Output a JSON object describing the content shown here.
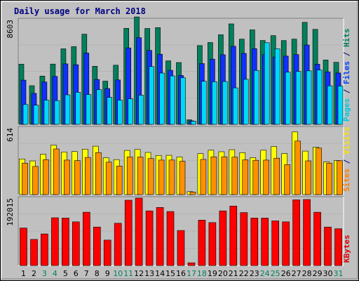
{
  "chart_data": {
    "type": "bar",
    "title": "Daily usage for March 2018",
    "categories": [
      "1",
      "2",
      "3",
      "4",
      "5",
      "6",
      "7",
      "8",
      "9",
      "10",
      "11",
      "12",
      "13",
      "14",
      "15",
      "16",
      "17",
      "18",
      "19",
      "20",
      "21",
      "22",
      "23",
      "24",
      "25",
      "26",
      "27",
      "28",
      "29",
      "30",
      "31"
    ],
    "weekend_days": [
      "3",
      "4",
      "10",
      "11",
      "17",
      "18",
      "24",
      "25",
      "31"
    ],
    "panels": [
      {
        "id": "hits_files_pages",
        "ylabel_max": "8603",
        "ymax": 8603,
        "label_parts": [
          {
            "text": "Pages",
            "color": "#00c8e0"
          },
          {
            "text": " / ",
            "color": "#000080"
          },
          {
            "text": "Files",
            "color": "#0040ff"
          },
          {
            "text": " / ",
            "color": "#000080"
          },
          {
            "text": "Hits",
            "color": "#008060"
          }
        ],
        "series": [
          {
            "name": "Hits",
            "color": "#00805c",
            "values": [
              5010,
              3220,
              4020,
              5020,
              6290,
              6470,
              7510,
              4840,
              3600,
              4930,
              8000,
              8950,
              7990,
              8060,
              5290,
              5150,
              380,
              6560,
              6820,
              7460,
              8370,
              7100,
              7870,
              6990,
              7390,
              6980,
              7100,
              8500,
              7910,
              5360,
              5170
            ]
          },
          {
            "name": "Files",
            "color": "#1030ff",
            "values": [
              3680,
              2580,
              3530,
              3990,
              5040,
              4970,
              5940,
              3740,
              2980,
              3700,
              6370,
              7220,
              6160,
              5840,
              4500,
              4080,
              290,
              5060,
              5430,
              5800,
              6500,
              5910,
              6310,
              5820,
              5620,
              5680,
              5810,
              6610,
              5010,
              4360,
              4280
            ]
          },
          {
            "name": "Pages",
            "color": "#00d8f8",
            "values": [
              1650,
              1600,
              2020,
              1980,
              2460,
              2670,
              2480,
              2890,
              2250,
              2020,
              2130,
              2430,
              4810,
              4270,
              4040,
              3880,
              260,
              3590,
              3550,
              3570,
              3040,
              3750,
              4490,
              6800,
              6300,
              4340,
              4410,
              4460,
              4530,
              3210,
              3190
            ]
          }
        ]
      },
      {
        "id": "visits_sites",
        "ylabel_max": "614",
        "ymax": 614,
        "label_parts": [
          {
            "text": "Sites",
            "color": "#ff8000"
          },
          {
            "text": " / ",
            "color": "#000080"
          },
          {
            "text": "Visits",
            "color": "#ffe000"
          }
        ],
        "series": [
          {
            "name": "Visits",
            "color": "#ffff00",
            "values": [
              335,
              316,
              380,
              465,
              401,
              405,
              427,
              455,
              346,
              329,
              415,
              424,
              396,
              368,
              369,
              353,
              28,
              385,
              417,
              403,
              422,
              394,
              347,
              417,
              452,
              386,
              589,
              409,
              446,
              307,
              320
            ]
          },
          {
            "name": "Sites",
            "color": "#ff9000",
            "values": [
              296,
              265,
              329,
              429,
              324,
              319,
              349,
              395,
              305,
              268,
              354,
              353,
              339,
              324,
              325,
              313,
              23,
              331,
              355,
              355,
              352,
              327,
              322,
              324,
              342,
              282,
              503,
              317,
              437,
              296,
              318
            ]
          }
        ]
      },
      {
        "id": "kbytes",
        "ylabel_max": "192015",
        "ymax": 192015,
        "label_parts": [
          {
            "text": "KBytes",
            "color": "#e00000"
          }
        ],
        "series": [
          {
            "name": "KBytes",
            "color": "#ff0000",
            "values": [
              109000,
              76000,
              92000,
              139000,
              138000,
              127000,
              155000,
              112000,
              74000,
              123000,
              190000,
              196000,
              159000,
              169000,
              157000,
              102000,
              8000,
              132000,
              125000,
              159000,
              173000,
              154000,
              138000,
              138000,
              130000,
              127000,
              191000,
              192000,
              155000,
              112000,
              107000
            ]
          }
        ]
      }
    ]
  }
}
